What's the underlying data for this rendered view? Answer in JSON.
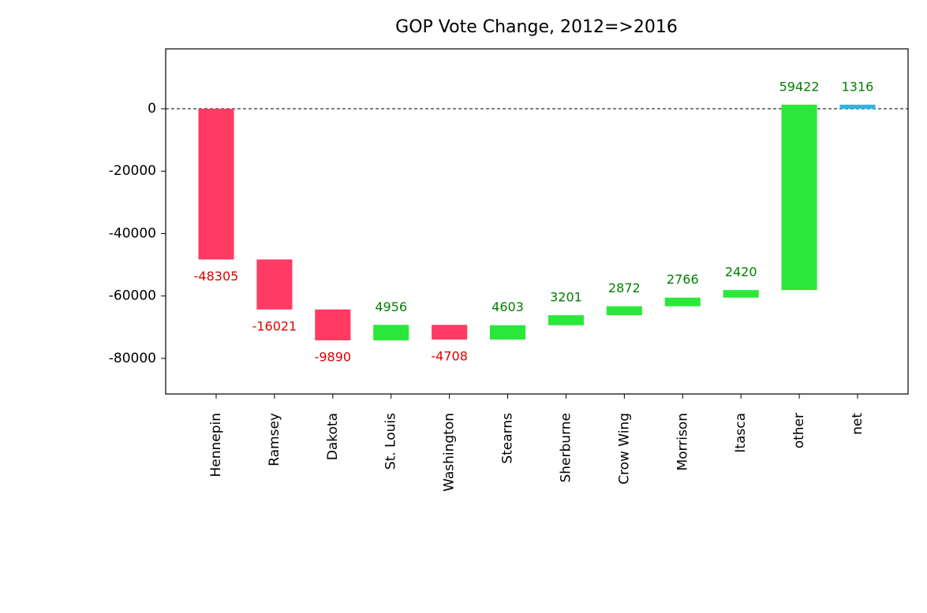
{
  "chart_data": {
    "type": "waterfall",
    "title": "GOP Vote Change, 2012=>2016",
    "categories": [
      "Hennepin",
      "Ramsey",
      "Dakota",
      "St. Louis",
      "Washington",
      "Stearns",
      "Sherburne",
      "Crow Wing",
      "Morrison",
      "Itasca",
      "other"
    ],
    "values": [
      -48305,
      -16021,
      -9890,
      4956,
      -4708,
      4603,
      3201,
      2872,
      2766,
      2420,
      59422
    ],
    "total_name": "net",
    "total_value": 1316,
    "increase_color": "#2ae83a",
    "decrease_color": "#ff3b63",
    "total_color": "#2ab5e8",
    "increase_label_color": "#008000",
    "decrease_label_color": "#e00000",
    "ylim": [
      -91400,
      19200
    ],
    "yticks": [
      0,
      -20000,
      -40000,
      -60000,
      -80000
    ],
    "zero_line": true
  }
}
